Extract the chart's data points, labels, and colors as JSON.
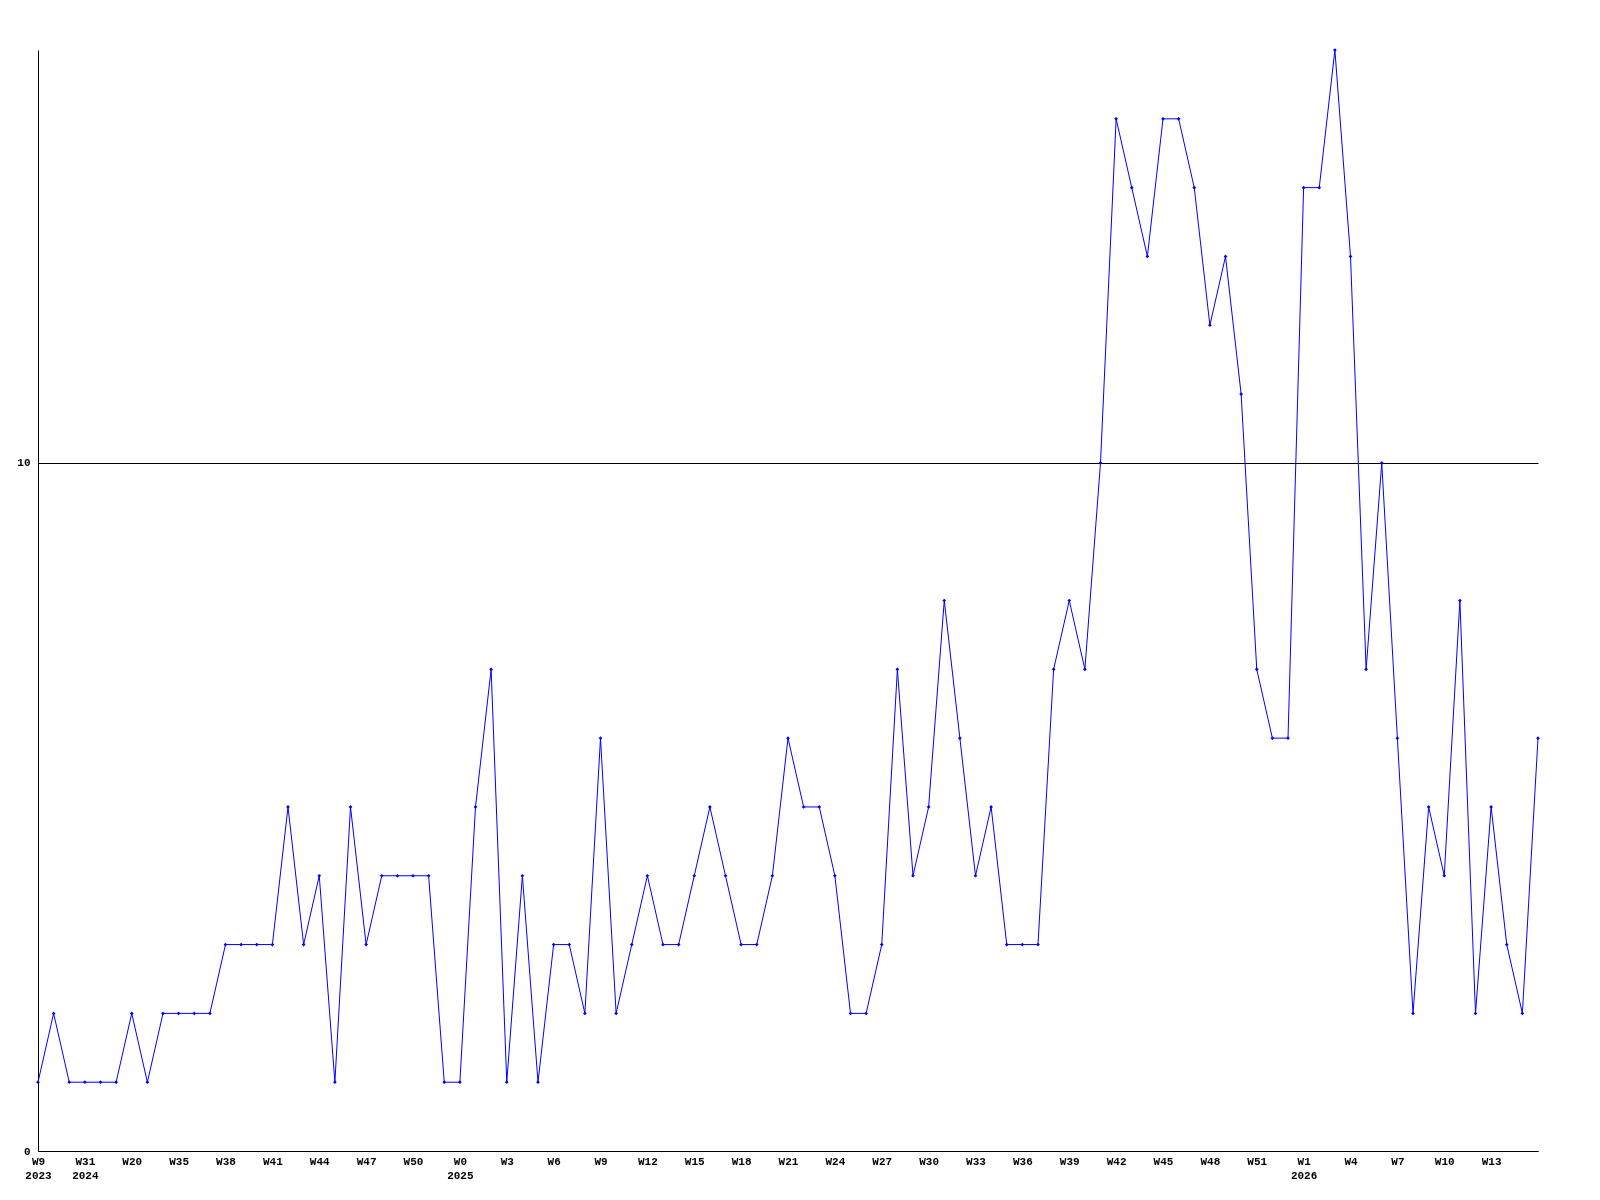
{
  "chart_data": {
    "type": "line",
    "categories": [
      "W9\n2023",
      null,
      null,
      "W31\n2024",
      null,
      null,
      "W20",
      null,
      null,
      "W35",
      null,
      null,
      "W38",
      null,
      null,
      "W41",
      null,
      null,
      "W44",
      null,
      null,
      "W47",
      null,
      null,
      "W50",
      null,
      null,
      "W0\n2025",
      null,
      null,
      "W3",
      null,
      null,
      "W6",
      null,
      null,
      "W9",
      null,
      null,
      "W12",
      null,
      null,
      "W15",
      null,
      null,
      "W18",
      null,
      null,
      "W21",
      null,
      null,
      "W24",
      null,
      null,
      "W27",
      null,
      null,
      "W30",
      null,
      null,
      "W33",
      null,
      null,
      "W36",
      null,
      null,
      "W39",
      null,
      null,
      "W42",
      null,
      null,
      "W45",
      null,
      null,
      "W48",
      null,
      null,
      "W51",
      null,
      null,
      "W1\n2026",
      null,
      null,
      "W4",
      null,
      null,
      "W7",
      null,
      null,
      "W10",
      null,
      null,
      "W13",
      null,
      null,
      null
    ],
    "series": [
      {
        "color": "#0000ff",
        "values": [
          1,
          2,
          1,
          1,
          1,
          1,
          2,
          1,
          2,
          2,
          2,
          2,
          3,
          3,
          3,
          3,
          5,
          3,
          4,
          1,
          5,
          3,
          4,
          4,
          4,
          4,
          1,
          1,
          5,
          7,
          1,
          4,
          1,
          3,
          3,
          2,
          6,
          2,
          3,
          4,
          3,
          3,
          4,
          5,
          4,
          3,
          3,
          4,
          6,
          5,
          5,
          4,
          2,
          2,
          3,
          7,
          4,
          5,
          8,
          6,
          4,
          5,
          3,
          3,
          3,
          7,
          8,
          7,
          10,
          15,
          14,
          13,
          15,
          15,
          14,
          12,
          13,
          11,
          7,
          6,
          6,
          14,
          14,
          16,
          13,
          7,
          10,
          6,
          2,
          5,
          4,
          8,
          2,
          5,
          3,
          2,
          6
        ]
      }
    ],
    "ylim": [
      0,
      16
    ],
    "yticks": [
      0,
      10
    ],
    "grid": "y",
    "marker": "diamond",
    "line_style": "solid"
  }
}
